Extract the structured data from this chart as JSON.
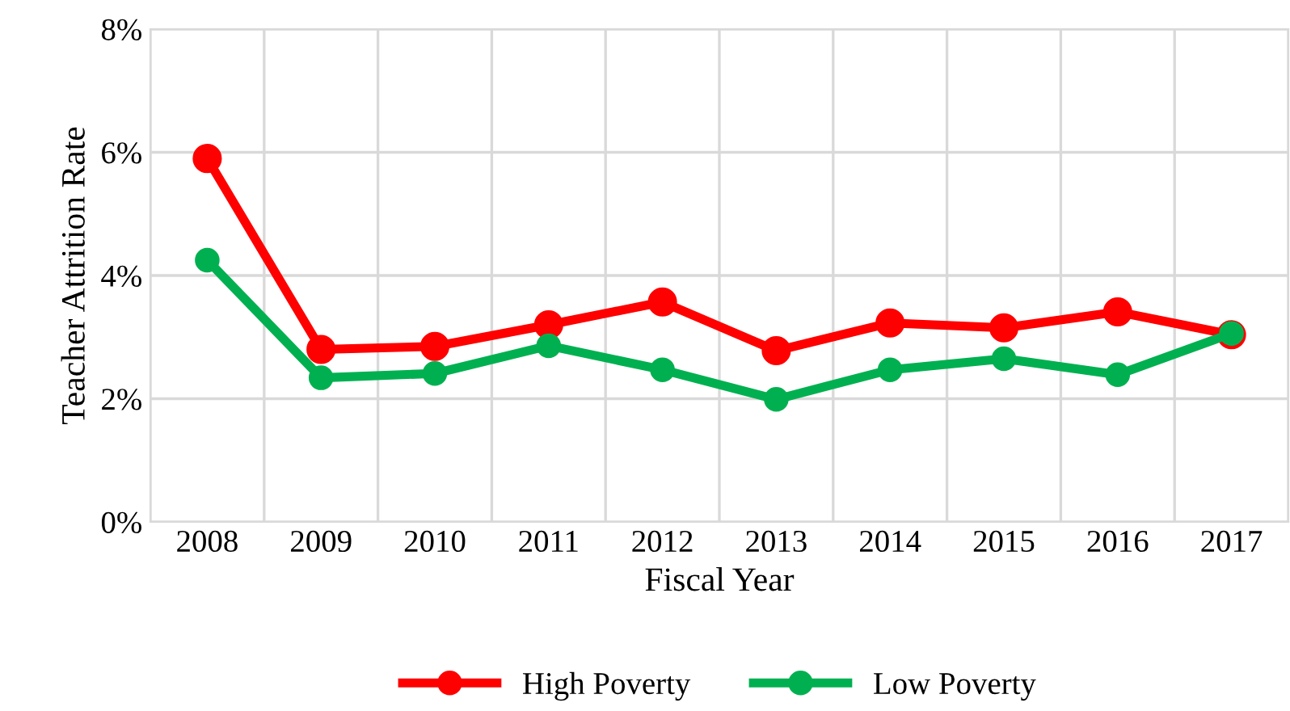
{
  "chart_data": {
    "type": "line",
    "xlabel": "Fiscal Year",
    "ylabel": "Teacher Attrition Rate",
    "categories": [
      "2008",
      "2009",
      "2010",
      "2011",
      "2012",
      "2013",
      "2014",
      "2015",
      "2016",
      "2017"
    ],
    "series": [
      {
        "name": "High Poverty",
        "color": "#ff0000",
        "values": [
          5.9,
          2.8,
          2.85,
          3.2,
          3.57,
          2.78,
          3.23,
          3.15,
          3.41,
          3.04
        ]
      },
      {
        "name": "Low Poverty",
        "color": "#00b050",
        "values": [
          4.25,
          2.34,
          2.41,
          2.86,
          2.47,
          1.99,
          2.47,
          2.65,
          2.39,
          3.06
        ]
      }
    ],
    "ylim": [
      0,
      8
    ],
    "yticks": [
      {
        "value": 0,
        "label": "0%"
      },
      {
        "value": 2,
        "label": "2%"
      },
      {
        "value": 4,
        "label": "4%"
      },
      {
        "value": 6,
        "label": "6%"
      },
      {
        "value": 8,
        "label": "8%"
      }
    ],
    "grid": true,
    "legend": "bottom",
    "marker": "circle",
    "line_style": "solid"
  }
}
